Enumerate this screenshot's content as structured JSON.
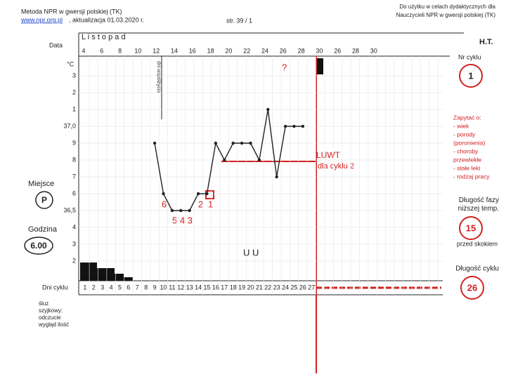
{
  "header": {
    "title": "Metoda NPR w gwersji polskiej (TK)",
    "link": "www.npr.org.pl",
    "updated": ", aktualizacja 01.03.2020 r.",
    "page": "str. 39 / 1",
    "note": "Do użytku w celach dydaktycznych dla Nauczycieli NPR w gwersji polskiej (TK)"
  },
  "month": "L i s t o p a d",
  "labels": {
    "date": "Data",
    "celsius": "°C",
    "rotated": "dni współżycia",
    "place": "Miejsce",
    "place_value": "P",
    "hour": "Godzina",
    "hour_value": "6.00",
    "cycle_days": "Dni cyklu",
    "mucus": "śluz szyjkowy: odczucie wygląd ilość"
  },
  "dates": [
    "4",
    "6",
    "8",
    "10",
    "12",
    "14",
    "16",
    "18",
    "20",
    "22",
    "24",
    "26",
    "28",
    "30",
    "26",
    "28",
    "30"
  ],
  "temperature_scale": [
    {
      "value": 37.3,
      "label": "3"
    },
    {
      "value": 37.2,
      "label": "2"
    },
    {
      "value": 37.1,
      "label": "1"
    },
    {
      "value": 37.0,
      "label": "37,0"
    },
    {
      "value": 36.9,
      "label": "9"
    },
    {
      "value": 36.8,
      "label": "8"
    },
    {
      "value": 36.7,
      "label": "7"
    },
    {
      "value": 36.6,
      "label": "6"
    },
    {
      "value": 36.5,
      "label": "36,5"
    },
    {
      "value": 36.4,
      "label": "4"
    },
    {
      "value": 36.3,
      "label": "3"
    },
    {
      "value": 36.2,
      "label": "2"
    }
  ],
  "cycle_day_numbers": [
    "1",
    "2",
    "3",
    "4",
    "5",
    "6",
    "7",
    "8",
    "9",
    "10",
    "11",
    "12",
    "13",
    "14",
    "15",
    "16",
    "17",
    "18",
    "19",
    "20",
    "21",
    "22",
    "23",
    "24",
    "25",
    "26",
    "27"
  ],
  "temperatures": {
    "days": [
      9,
      10,
      11,
      12,
      13,
      14,
      15,
      16,
      17,
      18,
      19,
      20,
      21,
      22,
      23,
      24,
      25,
      26
    ],
    "values": [
      36.9,
      36.6,
      36.5,
      36.5,
      36.5,
      36.6,
      36.6,
      36.9,
      36.8,
      36.9,
      36.9,
      36.9,
      36.8,
      37.1,
      36.7,
      37.0,
      37.0,
      37.0
    ]
  },
  "annotations": {
    "question": "?",
    "luwt": "LUWT",
    "luwt_sub": "dla cyklu 2",
    "six": "6",
    "two": "2",
    "one": "1",
    "five_four_three": "5 4 3",
    "uu": "U U"
  },
  "side": {
    "ht": "H.T.",
    "cycle_no": "Nr cyklu",
    "cycle_no_value": "1",
    "ask": [
      "Zapytać o:",
      "- wiek",
      "- porody",
      "(poronienia)",
      "- choroby",
      "przewlekłe",
      "- stałe leki",
      "- rodzaj pracy"
    ],
    "low_phase": "Długość fazy niższej temp.",
    "low_phase_value": "15",
    "before_jump": "przed skokiem",
    "cycle_length": "Długość cyklu",
    "cycle_length_value": "26"
  }
}
